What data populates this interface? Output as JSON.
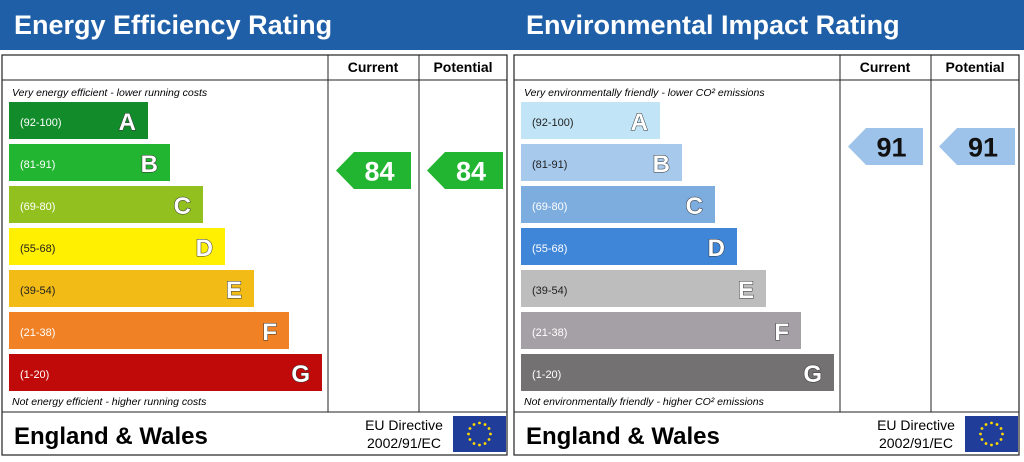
{
  "panels": [
    {
      "title": "Energy Efficiency Rating",
      "header_current": "Current",
      "header_potential": "Potential",
      "top_note": "Very energy efficient - lower running costs",
      "bands": [
        {
          "range": "(92-100)",
          "letter": "A"
        },
        {
          "range": "(81-91)",
          "letter": "B"
        },
        {
          "range": "(69-80)",
          "letter": "C"
        },
        {
          "range": "(55-68)",
          "letter": "D"
        },
        {
          "range": "(39-54)",
          "letter": "E"
        },
        {
          "range": "(21-38)",
          "letter": "F"
        },
        {
          "range": "(1-20)",
          "letter": "G"
        }
      ],
      "current": 84,
      "potential": 84,
      "bottom_note": "Not energy efficient - higher running costs",
      "region": "England & Wales",
      "directive_line1": "EU Directive",
      "directive_line2": "2002/91/EC"
    },
    {
      "title": "Environmental Impact Rating",
      "header_current": "Current",
      "header_potential": "Potential",
      "top_note": "Very environmentally friendly - lower CO² emissions",
      "bands": [
        {
          "range": "(92-100)",
          "letter": "A"
        },
        {
          "range": "(81-91)",
          "letter": "B"
        },
        {
          "range": "(69-80)",
          "letter": "C"
        },
        {
          "range": "(55-68)",
          "letter": "D"
        },
        {
          "range": "(39-54)",
          "letter": "E"
        },
        {
          "range": "(21-38)",
          "letter": "F"
        },
        {
          "range": "(1-20)",
          "letter": "G"
        }
      ],
      "current": 91,
      "potential": 91,
      "bottom_note": "Not environmentally friendly - higher CO² emissions",
      "region": "England & Wales",
      "directive_line1": "EU Directive",
      "directive_line2": "2002/91/EC"
    }
  ]
}
